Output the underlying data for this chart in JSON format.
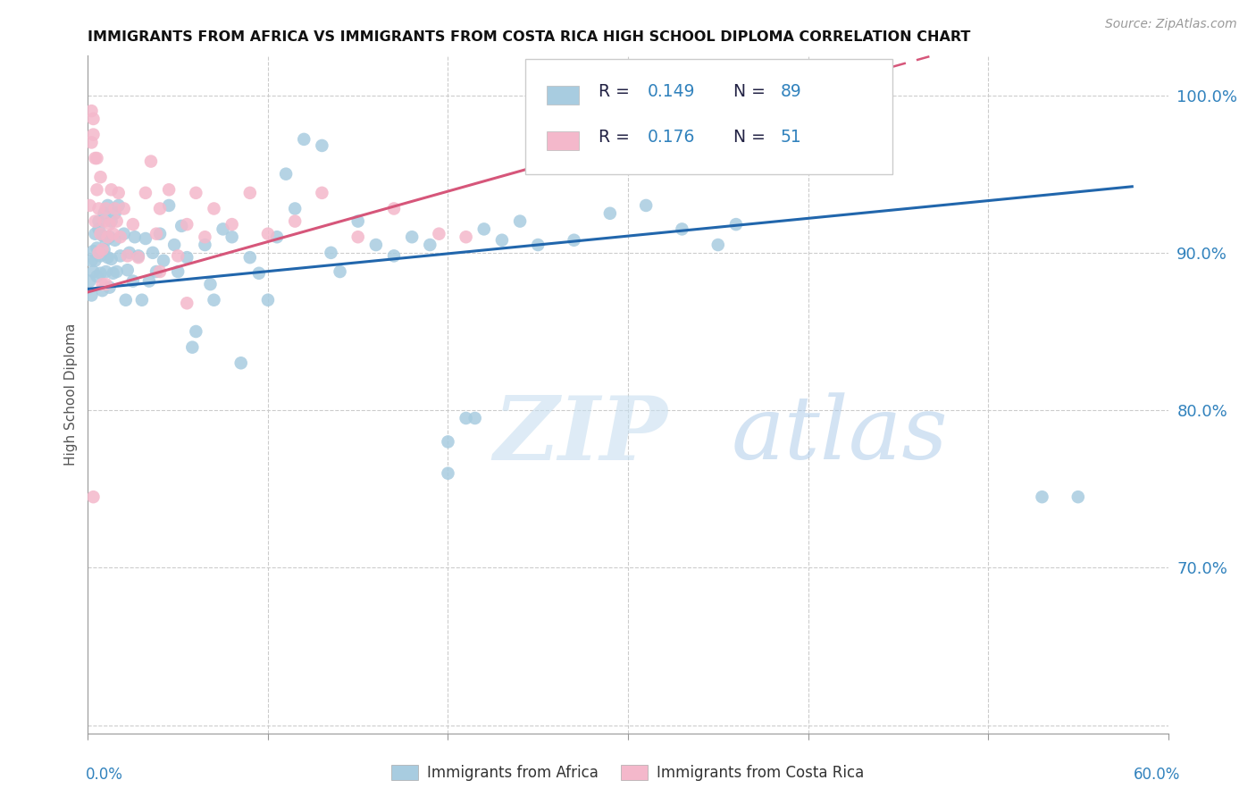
{
  "title": "IMMIGRANTS FROM AFRICA VS IMMIGRANTS FROM COSTA RICA HIGH SCHOOL DIPLOMA CORRELATION CHART",
  "source": "Source: ZipAtlas.com",
  "ylabel": "High School Diploma",
  "legend_label_blue": "Immigrants from Africa",
  "legend_label_pink": "Immigrants from Costa Rica",
  "legend_R_blue": "R = 0.149",
  "legend_N_blue": "N = 89",
  "legend_R_pink": "R = 0.176",
  "legend_N_pink": "N = 51",
  "color_blue": "#a8cce0",
  "color_pink": "#f4b8cb",
  "color_line_blue": "#2166ac",
  "color_line_pink": "#d6567a",
  "color_text_blue": "#3182bd",
  "color_text_dark": "#222244",
  "background_color": "#ffffff",
  "watermark_zip": "ZIP",
  "watermark_atlas": "atlas",
  "xlim": [
    0.0,
    0.6
  ],
  "ylim": [
    0.595,
    1.025
  ],
  "ytick_vals": [
    1.0,
    0.9,
    0.8,
    0.7
  ],
  "ytick_labels": [
    "100.0%",
    "90.0%",
    "80.0%",
    "70.0%"
  ]
}
